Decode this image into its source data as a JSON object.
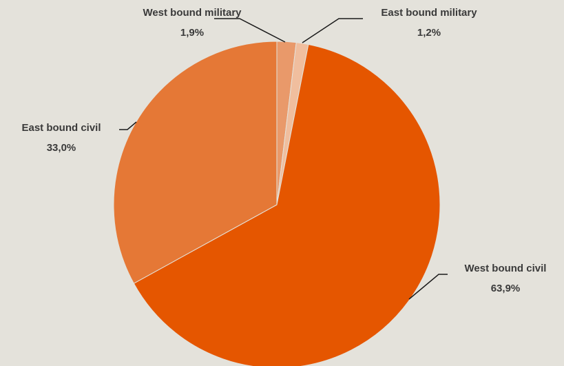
{
  "chart_data": {
    "type": "pie",
    "title": "",
    "slices": [
      {
        "name": "West bound military",
        "value": 1.9,
        "label": "1,9%",
        "color": "#E9996A"
      },
      {
        "name": "East bound military",
        "value": 1.2,
        "label": "1,2%",
        "color": "#F0BE9E"
      },
      {
        "name": "West bound civil",
        "value": 63.9,
        "label": "63,9%",
        "color": "#E55600"
      },
      {
        "name": "East bound civil",
        "value": 33.0,
        "label": "33,0%",
        "color": "#E57836"
      }
    ],
    "start_angle": "12 o'clock",
    "direction": "clockwise",
    "legend": "none",
    "data_labels": "outside with leader lines"
  },
  "background_color": "#E4E2DB"
}
